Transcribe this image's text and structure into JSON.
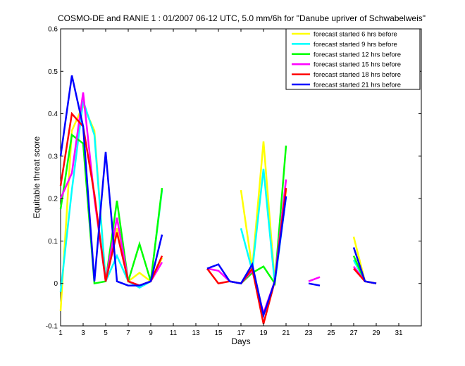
{
  "chart_data": {
    "type": "line",
    "title": "COSMO-DE and RANIE 1 : 01/2007 06-12 UTC, 5.0 mm/6h for \"Danube upriver of Schwabelweis\"",
    "xlabel": "Days",
    "ylabel": "Equitable threat score",
    "xlim": [
      1,
      33
    ],
    "ylim": [
      -0.1,
      0.6
    ],
    "xticks": [
      1,
      3,
      5,
      7,
      9,
      11,
      13,
      15,
      17,
      19,
      21,
      23,
      25,
      27,
      29,
      31
    ],
    "yticks": [
      -0.1,
      0,
      0.1,
      0.2,
      0.3,
      0.4,
      0.5,
      0.6
    ],
    "legend_position": "top-right",
    "grid": false,
    "series": [
      {
        "name": "forecast started 6 hrs before",
        "color": "#ffff00",
        "values": [
          -0.065,
          0.36,
          0.42,
          0.36,
          0.005,
          0.13,
          0.005,
          0.025,
          0.005,
          0.06,
          null,
          null,
          null,
          null,
          null,
          null,
          0.22,
          0.035,
          0.335,
          0.005,
          0.22,
          null,
          null,
          null,
          null,
          null,
          0.11,
          0.005,
          0.0,
          null,
          null
        ]
      },
      {
        "name": "forecast started 9 hrs before",
        "color": "#00ffff",
        "values": [
          -0.02,
          0.22,
          0.43,
          0.35,
          0.005,
          0.065,
          0.005,
          -0.01,
          0.005,
          0.22,
          null,
          null,
          null,
          null,
          null,
          null,
          0.13,
          0.03,
          0.27,
          0.0,
          0.205,
          null,
          null,
          null,
          null,
          null,
          0.055,
          0.005,
          0.0,
          null,
          null
        ]
      },
      {
        "name": "forecast started 12 hrs before",
        "color": "#00ff00",
        "values": [
          0.175,
          0.35,
          0.33,
          0.0,
          0.005,
          0.195,
          0.005,
          0.093,
          0.005,
          0.225,
          null,
          null,
          null,
          null,
          null,
          null,
          0.0,
          0.025,
          0.04,
          0.0,
          0.325,
          null,
          null,
          null,
          null,
          null,
          0.065,
          0.005,
          0.0,
          null,
          null
        ]
      },
      {
        "name": "forecast started 15 hrs before",
        "color": "#ff00ff",
        "values": [
          0.2,
          0.26,
          0.45,
          0.2,
          0.005,
          0.155,
          0.005,
          -0.005,
          0.005,
          0.05,
          null,
          null,
          null,
          0.035,
          0.03,
          0.005,
          0.0,
          0.03,
          -0.07,
          0.005,
          0.245,
          null,
          0.005,
          0.015,
          null,
          null,
          0.04,
          0.005,
          0.0,
          null,
          null
        ]
      },
      {
        "name": "forecast started 18 hrs before",
        "color": "#ff0000",
        "values": [
          0.23,
          0.4,
          0.37,
          0.21,
          0.005,
          0.12,
          0.005,
          -0.005,
          0.005,
          0.065,
          null,
          null,
          null,
          0.035,
          0.0,
          0.005,
          0.0,
          0.035,
          -0.095,
          0.005,
          0.225,
          null,
          null,
          null,
          null,
          null,
          0.035,
          0.005,
          0.0,
          null,
          null
        ]
      },
      {
        "name": "forecast started 21 hrs before",
        "color": "#0000ff",
        "values": [
          0.3,
          0.49,
          0.37,
          0.005,
          0.31,
          0.005,
          -0.005,
          -0.005,
          0.005,
          0.115,
          null,
          null,
          null,
          0.035,
          0.045,
          0.005,
          0.0,
          0.045,
          -0.075,
          0.005,
          0.205,
          null,
          0.0,
          -0.005,
          null,
          null,
          0.085,
          0.005,
          0.0,
          null,
          null
        ]
      }
    ]
  }
}
